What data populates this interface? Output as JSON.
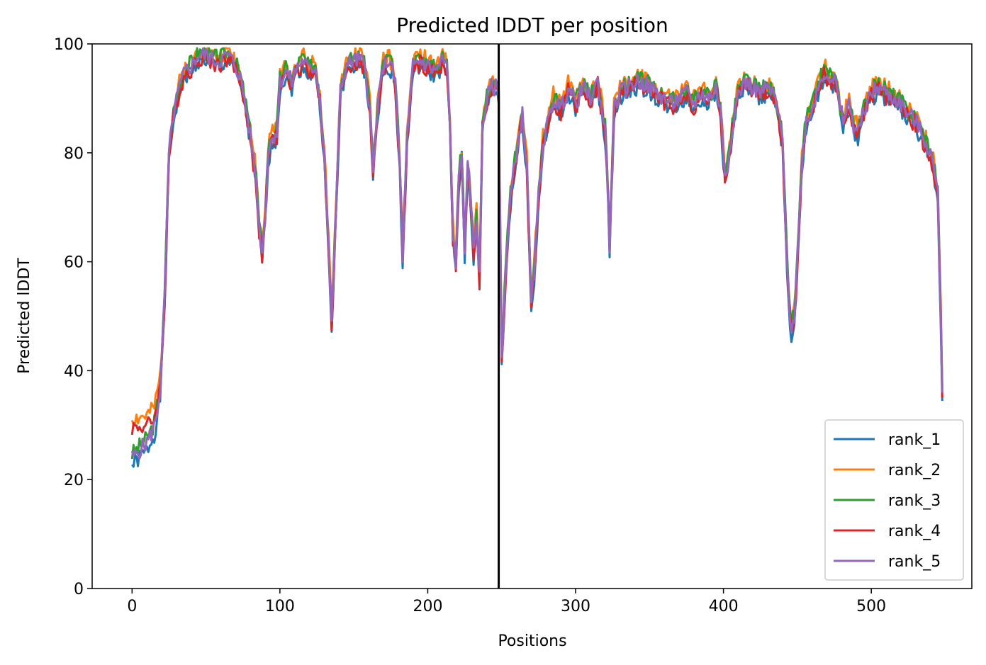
{
  "chart_data": {
    "type": "line",
    "title": "Predicted lDDT per position",
    "xlabel": "Positions",
    "ylabel": "Predicted lDDT",
    "xlim": [
      -27,
      568
    ],
    "ylim": [
      0,
      100
    ],
    "xticks": [
      0,
      100,
      200,
      300,
      400,
      500
    ],
    "yticks": [
      0,
      20,
      40,
      60,
      80,
      100
    ],
    "legend_position": "lower-right",
    "vertical_line_x": 248,
    "series": [
      {
        "name": "rank_1",
        "color": "#1f77b4",
        "delta": -1.0,
        "seed": 1
      },
      {
        "name": "rank_2",
        "color": "#ff7f0e",
        "delta": 0.9,
        "seed": 2
      },
      {
        "name": "rank_3",
        "color": "#2ca02c",
        "delta": 0.5,
        "seed": 3
      },
      {
        "name": "rank_4",
        "color": "#d62728",
        "delta": -0.6,
        "seed": 4
      },
      {
        "name": "rank_5",
        "color": "#9467bd",
        "delta": 0.0,
        "seed": 5
      }
    ],
    "start_values": [
      24,
      30,
      24,
      30.5,
      24
    ],
    "profile_x": [
      0,
      2,
      5,
      10,
      15,
      19,
      22,
      25,
      28,
      32,
      36,
      40,
      45,
      50,
      55,
      60,
      65,
      70,
      73,
      76,
      79,
      82,
      84,
      86,
      88,
      90,
      92,
      95,
      98,
      100,
      104,
      108,
      112,
      116,
      120,
      124,
      127,
      130,
      133,
      135,
      138,
      141,
      145,
      150,
      155,
      158,
      161,
      163,
      166,
      170,
      174,
      178,
      181,
      183,
      186,
      190,
      195,
      200,
      205,
      210,
      213,
      215,
      217,
      219,
      221,
      223,
      225,
      227,
      229,
      231,
      233,
      235,
      237,
      240,
      243,
      246,
      248,
      250,
      253,
      256,
      260,
      264,
      267,
      270,
      272,
      275,
      278,
      282,
      285,
      290,
      295,
      300,
      305,
      310,
      315,
      320,
      322,
      323,
      326,
      330,
      335,
      340,
      345,
      350,
      355,
      360,
      365,
      370,
      375,
      380,
      385,
      390,
      395,
      398,
      401,
      403,
      406,
      410,
      415,
      420,
      425,
      430,
      435,
      437,
      440,
      442,
      444,
      446,
      448,
      450,
      453,
      456,
      460,
      464,
      468,
      472,
      476,
      478,
      481,
      485,
      488,
      492,
      495,
      500,
      505,
      510,
      515,
      520,
      525,
      530,
      535,
      540,
      543,
      545,
      547,
      548
    ],
    "profile_y": [
      23,
      22,
      24,
      26,
      30,
      38,
      55,
      80,
      87,
      92,
      95,
      96,
      98,
      98,
      97,
      97,
      98,
      96,
      94,
      90,
      85,
      79,
      75,
      66,
      62,
      68,
      80,
      83,
      84,
      93,
      95,
      93,
      96,
      97,
      95,
      96,
      90,
      80,
      62,
      48,
      70,
      92,
      96,
      97,
      97,
      95,
      88,
      76,
      88,
      96,
      97,
      93,
      78,
      61,
      82,
      96,
      97,
      96,
      95,
      97,
      96,
      85,
      65,
      60,
      75,
      80,
      62,
      77,
      72,
      62,
      68,
      57,
      85,
      90,
      92,
      92,
      91,
      42,
      60,
      72,
      80,
      87,
      78,
      52,
      58,
      72,
      82,
      86,
      90,
      88,
      92,
      89,
      92,
      90,
      93,
      84,
      72,
      63,
      88,
      91,
      92,
      93,
      93,
      92,
      91,
      90,
      89,
      90,
      91,
      89,
      91,
      90,
      92,
      88,
      76,
      78,
      85,
      91,
      93,
      92,
      91,
      92,
      90,
      87,
      82,
      67,
      53,
      48,
      50,
      60,
      78,
      86,
      88,
      92,
      95,
      94,
      93,
      89,
      86,
      89,
      85,
      84,
      88,
      91,
      92,
      91,
      90,
      89,
      87,
      86,
      83,
      80,
      76,
      72,
      50,
      36
    ]
  }
}
